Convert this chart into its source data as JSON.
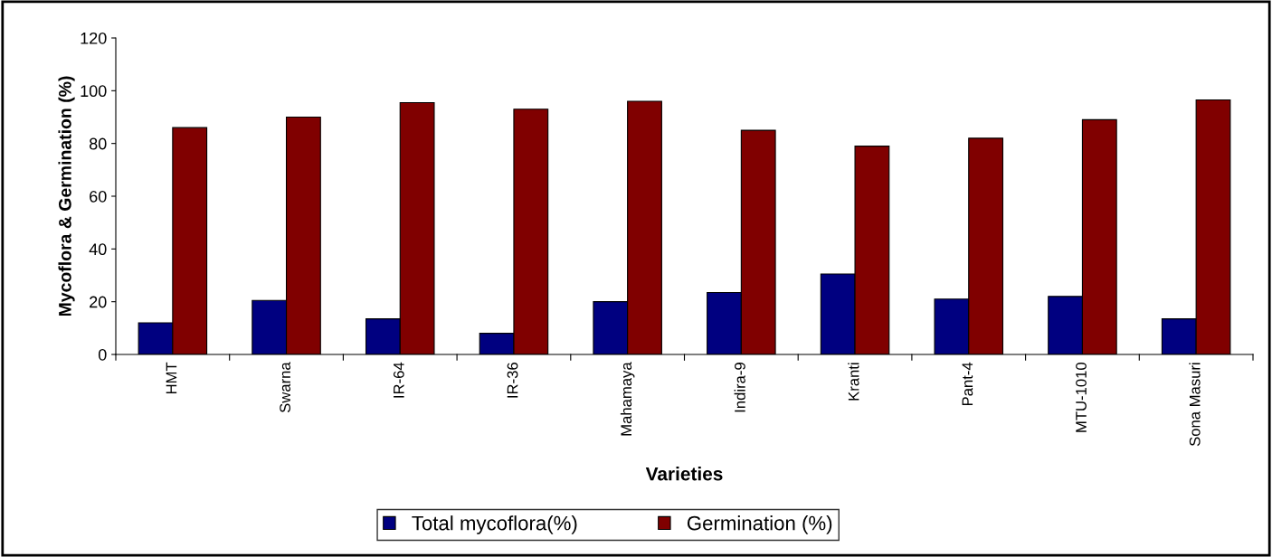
{
  "chart_data": {
    "type": "bar",
    "xlabel": "Varieties",
    "ylabel": "Mycoflora & Germination (%)",
    "categories": [
      "HMT",
      "Swarna",
      "IR-64",
      "IR-36",
      "Mahamaya",
      "Indira-9",
      "Kranti",
      "Pant-4",
      "MTU-1010",
      "Sona Masuri"
    ],
    "series": [
      {
        "name": "Total mycoflora(%)",
        "color": "#000080",
        "values": [
          12,
          20.5,
          13.5,
          8,
          20,
          23.5,
          30.5,
          21,
          22,
          13.5
        ]
      },
      {
        "name": "Germination (%)",
        "color": "#800000",
        "values": [
          86,
          90,
          95.5,
          93,
          96,
          85,
          79,
          82,
          89,
          96.5
        ]
      }
    ],
    "ylim": [
      0,
      120
    ],
    "yticks": [
      0,
      20,
      40,
      60,
      80,
      100,
      120
    ],
    "grid": false,
    "legend": "bottom"
  }
}
